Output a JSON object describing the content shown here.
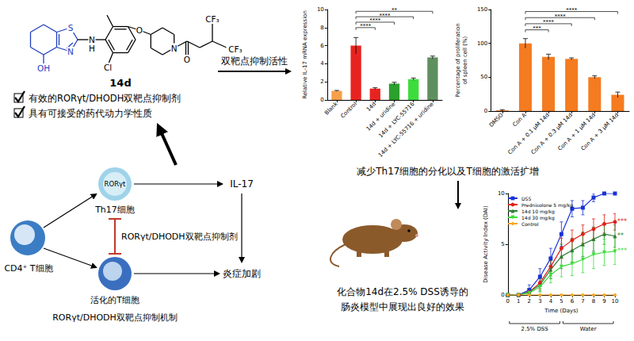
{
  "molecule": {
    "name": "14d",
    "atoms": [
      "S",
      "N",
      "N",
      "H",
      "OH",
      "Cl",
      "O",
      "N",
      "O",
      "CF₃",
      "CF₃"
    ]
  },
  "checklist": [
    "有效的RORγt/DHODH双靶点抑制剂",
    "具有可接受的药代动力学性质"
  ],
  "arrow_label": "双靶点抑制活性",
  "caption_middle": "减少Th17细胞的分化以及T细胞的激活扩增",
  "caption_bottom": [
    "化合物14d在2.5% DSS诱导的",
    "肠炎模型中展现出良好的效果"
  ],
  "mechanism": {
    "cd4": "CD4⁺ T细胞",
    "th17_marker": "RORγt",
    "th17": "Th17细胞",
    "activated": "活化的T细胞",
    "il17": "IL-17",
    "outcome": "炎症加剧",
    "inhibitor": "RORγt/DHODH双靶点抑制剂",
    "caption": "RORγt/DHODH双靶点抑制机制"
  },
  "chart_data": [
    {
      "type": "bar",
      "ylabel": "Relative IL-17 mRNA expression",
      "categories": [
        "Blank",
        "Control",
        "14d",
        "14d + uridine",
        "14d + LYC-55716",
        "14d + LYC-55716 + uridine"
      ],
      "values": [
        1.0,
        6.0,
        1.25,
        1.8,
        2.3,
        4.7
      ],
      "errors": [
        0.05,
        0.9,
        0.1,
        0.15,
        0.12,
        0.15
      ],
      "colors": [
        "#f5a04a",
        "#e8231f",
        "#e8231f",
        "#2ca02c",
        "#3ddc3d",
        "#5f8f5f"
      ],
      "ylim": [
        0,
        10
      ],
      "yticks": [
        0,
        2,
        4,
        6,
        8,
        10
      ],
      "grid": false,
      "significance": [
        {
          "from": "Control",
          "to": "14d + LYC-55716 + uridine",
          "label": "**"
        },
        {
          "from": "Control",
          "to": "14d + LYC-55716",
          "label": "****"
        },
        {
          "from": "Control",
          "to": "14d + uridine",
          "label": "****"
        },
        {
          "from": "Control",
          "to": "14d",
          "label": "****"
        }
      ]
    },
    {
      "type": "bar",
      "ylabel": "Percentage of proliferation\nof spleen cell (%)",
      "categories": [
        "DMSO",
        "Con A",
        "Con A + 0.1 μM 14d",
        "Con A + 0.3 μM 14d",
        "Con A + 1 μM 14d",
        "Con A + 3 μM 14d"
      ],
      "values": [
        1,
        100,
        80,
        77,
        50,
        24
      ],
      "errors": [
        1,
        7,
        4,
        1.5,
        2,
        4
      ],
      "color": "#f47b20",
      "ylim": [
        0,
        150
      ],
      "yticks": [
        0,
        50,
        100,
        150
      ],
      "grid": false,
      "significance": [
        {
          "from": "Con A",
          "to": "Con A + 3 μM 14d",
          "label": "****"
        },
        {
          "from": "Con A",
          "to": "Con A + 1 μM 14d",
          "label": "****"
        },
        {
          "from": "Con A",
          "to": "Con A + 0.3 μM 14d",
          "label": "****"
        },
        {
          "from": "Con A",
          "to": "Con A + 0.1 μM 14d",
          "label": "***"
        }
      ]
    },
    {
      "type": "line",
      "ylabel": "Disease Activity Index (DAI)",
      "xlabel": "Time (Days)",
      "x": [
        0,
        1,
        2,
        3,
        4,
        5,
        6,
        7,
        8,
        9,
        10
      ],
      "xlim": [
        0,
        10
      ],
      "xticks": [
        0,
        1,
        2,
        3,
        4,
        5,
        6,
        7,
        8,
        9,
        10
      ],
      "ylim": [
        0,
        10
      ],
      "yticks": [
        0,
        5,
        10
      ],
      "grid": false,
      "legend": "upper left",
      "series": [
        {
          "name": "DSS",
          "color": "#1a33d6",
          "marker": "square",
          "values": [
            0,
            0,
            0.5,
            1.8,
            3.6,
            6.0,
            8.5,
            8.6,
            9.6,
            10,
            10
          ],
          "errors": [
            0,
            0,
            0.5,
            0.8,
            1.0,
            1.2,
            0.8,
            0.7,
            0.4,
            0,
            0
          ]
        },
        {
          "name": "Prednisolone 5 mg/kg",
          "color": "#e0201a",
          "marker": "circle",
          "values": [
            0,
            0,
            0.3,
            1.2,
            2.8,
            4.6,
            5.4,
            6.0,
            6.5,
            7.0,
            7.2
          ],
          "errors": [
            0,
            0,
            0.3,
            0.6,
            0.9,
            1.0,
            1.0,
            0.9,
            1.0,
            0.9,
            0.8
          ],
          "significance": "***"
        },
        {
          "name": "14d 10 mg/kg",
          "color": "#2e7d32",
          "marker": "triangle",
          "values": [
            0,
            0,
            0.3,
            1.0,
            2.5,
            3.8,
            4.4,
            5.0,
            5.5,
            6.0,
            5.8
          ],
          "errors": [
            0,
            0,
            0.3,
            0.6,
            0.9,
            1.2,
            1.2,
            1.2,
            1.2,
            1.0,
            1.1
          ],
          "significance": "**"
        },
        {
          "name": "14d 30 mg/kg",
          "color": "#3ddc3d",
          "marker": "triangle-down",
          "values": [
            0,
            0,
            0.2,
            0.8,
            2.0,
            2.8,
            3.1,
            3.5,
            4.0,
            4.2,
            4.3
          ],
          "errors": [
            0,
            0,
            0.2,
            0.5,
            0.8,
            1.0,
            1.2,
            1.3,
            1.4,
            1.3,
            1.3
          ],
          "significance": "***"
        },
        {
          "name": "Control",
          "color": "#f5a623",
          "marker": "diamond",
          "values": [
            0,
            0,
            0,
            0,
            0,
            0,
            0,
            0,
            0,
            0,
            0
          ],
          "errors": [
            0,
            0,
            0,
            0,
            0,
            0,
            0,
            0,
            0,
            0,
            0
          ]
        }
      ],
      "periods": [
        {
          "label": "2.5% DSS",
          "from": 0,
          "to": 5
        },
        {
          "label": "Water",
          "from": 5,
          "to": 10
        }
      ]
    }
  ]
}
